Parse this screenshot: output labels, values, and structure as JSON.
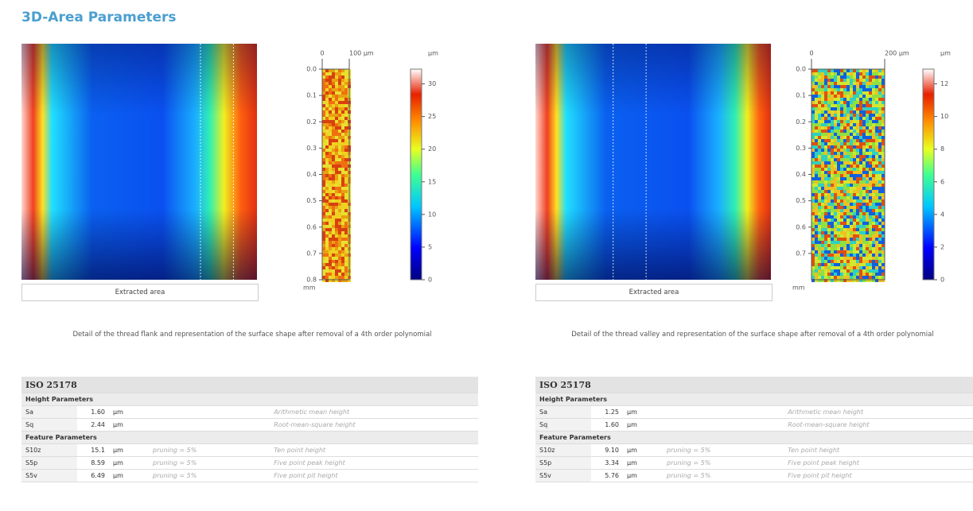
{
  "title": "3D-Area Parameters",
  "panels": [
    {
      "x_ticks": [
        "0",
        "100 µm"
      ],
      "y_ticks": [
        "0.0",
        "0.1",
        "0.2",
        "0.3",
        "0.4",
        "0.5",
        "0.6",
        "0.7",
        "0.8"
      ],
      "y_unit": "mm",
      "colorbar_unit": "µm",
      "colorbar_ticks": [
        "30",
        "25",
        "20",
        "15",
        "10",
        "5",
        "0"
      ],
      "extracted_label": "Extracted area",
      "caption": "Detail of the thread flank and representation of the surface shape after removal of a 4th order polynomial",
      "table": {
        "title": "ISO 25178",
        "sections": [
          {
            "name": "Height Parameters",
            "rows": [
              [
                "Sa",
                "1.60",
                "µm",
                "",
                "Arithmetic mean height"
              ],
              [
                "Sq",
                "2.44",
                "µm",
                "",
                "Root-mean-square height"
              ]
            ]
          },
          {
            "name": "Feature Parameters",
            "rows": [
              [
                "S10z",
                "15.1",
                "µm",
                "pruning = 5%",
                "Ten point height"
              ],
              [
                "S5p",
                "8.59",
                "µm",
                "pruning = 5%",
                "Five point peak height"
              ],
              [
                "S5v",
                "6.49",
                "µm",
                "pruning = 5%",
                "Five point pit height"
              ]
            ]
          }
        ]
      }
    },
    {
      "x_ticks": [
        "0",
        "200 µm"
      ],
      "y_ticks": [
        "0.0",
        "0.1",
        "0.2",
        "0.3",
        "0.4",
        "0.5",
        "0.6",
        "0.7"
      ],
      "y_unit": "mm",
      "colorbar_unit": "µm",
      "colorbar_ticks": [
        "12",
        "10",
        "8",
        "6",
        "4",
        "2",
        "0"
      ],
      "extracted_label": "Extracted area",
      "caption": "Detail of the thread valley and representation of the surface shape after removal of a 4th order polynomial",
      "table": {
        "title": "ISO 25178",
        "sections": [
          {
            "name": "Height Parameters",
            "rows": [
              [
                "Sa",
                "1.25",
                "µm",
                "",
                "Arithmetic mean height"
              ],
              [
                "Sq",
                "1.60",
                "µm",
                "",
                "Root-mean-square height"
              ]
            ]
          },
          {
            "name": "Feature Parameters",
            "rows": [
              [
                "S10z",
                "9.10",
                "µm",
                "pruning = 5%",
                "Ten point height"
              ],
              [
                "S5p",
                "3.34",
                "µm",
                "pruning = 5%",
                "Five point peak height"
              ],
              [
                "S5v",
                "5.76",
                "µm",
                "pruning = 5%",
                "Five point pit height"
              ]
            ]
          }
        ]
      }
    }
  ]
}
